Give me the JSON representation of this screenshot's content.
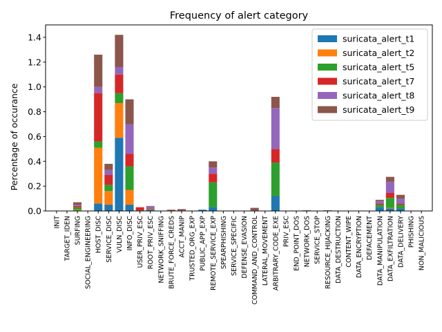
{
  "chart_data": {
    "type": "bar",
    "stacked": true,
    "title": "Frequency of alert category",
    "xlabel": "",
    "ylabel": "Percentage of occurance",
    "ylim": [
      0,
      1.5
    ],
    "yticks": [
      0.0,
      0.2,
      0.4,
      0.6,
      0.8,
      1.0,
      1.2,
      1.4
    ],
    "grid": false,
    "legend_position": "top-right",
    "categories": [
      "INIT",
      "TARGET_IDEN",
      "SURFING",
      "SOCIAL_ENGINEERING",
      "HOST_DISC",
      "SERVICE_DISC",
      "VULN_DISC",
      "INFO_DISC",
      "USER_PRIV_ESC",
      "ROOT_PRIV_ESC",
      "NETWORK_SNIFFING",
      "BRUTE_FORCE_CREDS",
      "ACCT_MANIP",
      "TRUSTED_ORG_EXP",
      "PUBLIC_APP_EXP",
      "REMOTE_SERVICE_EXP",
      "SPEARPHISHING",
      "SERVICE_SPECIFIC",
      "DEFENSE_EVASION",
      "COMMAND_AND_CONTROL",
      "LATERAL_MOVEMENT",
      "ARBITRARY_CODE_EXE",
      "PRIV_ESC",
      "END_POINT_DOS",
      "NETWORK_DOS",
      "SERVICE_STOP",
      "RESOURCE_HIJACKING",
      "DATA_DESTRUCTION",
      "CONTENT_WIPE",
      "DATA_ENCRYPTION",
      "DEFACEMENT",
      "DATA_MANIPULATION",
      "DATA_EXFILTRATION",
      "DATA_DELIVERY",
      "PHISHING",
      "NON_MALICIOUS"
    ],
    "series": [
      {
        "name": "suricata_alert_t1",
        "color": "#1f77b4",
        "values": [
          0,
          0,
          0.005,
          0,
          0.06,
          0.05,
          0.59,
          0.05,
          0,
          0,
          0,
          0,
          0,
          0,
          0.01,
          0.03,
          0,
          0,
          0,
          0,
          0,
          0.12,
          0,
          0,
          0,
          0,
          0,
          0,
          0,
          0,
          0,
          0.03,
          0.02,
          0.02,
          0,
          0
        ]
      },
      {
        "name": "suricata_alert_t2",
        "color": "#ff7f0e",
        "values": [
          0,
          0,
          0.005,
          0,
          0.45,
          0.11,
          0.28,
          0.12,
          0,
          0,
          0,
          0,
          0,
          0,
          0,
          0,
          0,
          0,
          0,
          0,
          0,
          0,
          0,
          0,
          0,
          0,
          0,
          0,
          0,
          0,
          0,
          0,
          0.005,
          0,
          0,
          0
        ]
      },
      {
        "name": "suricata_alert_t5",
        "color": "#2ca02c",
        "values": [
          0,
          0,
          0.02,
          0,
          0.05,
          0.05,
          0.08,
          0.19,
          0.005,
          0.01,
          0,
          0,
          0,
          0,
          0,
          0.2,
          0,
          0,
          0,
          0,
          0,
          0.27,
          0,
          0,
          0,
          0,
          0,
          0,
          0,
          0,
          0,
          0.02,
          0.08,
          0.03,
          0,
          0
        ]
      },
      {
        "name": "suricata_alert_t7",
        "color": "#d62728",
        "values": [
          0,
          0,
          0.01,
          0,
          0.39,
          0.08,
          0.15,
          0.1,
          0.025,
          0.005,
          0,
          0.005,
          0,
          0,
          0,
          0.07,
          0,
          0,
          0,
          0,
          0,
          0.11,
          0,
          0,
          0,
          0,
          0,
          0,
          0,
          0,
          0,
          0.01,
          0.04,
          0.01,
          0,
          0
        ]
      },
      {
        "name": "suricata_alert_t8",
        "color": "#9467bd",
        "values": [
          0,
          0,
          0.01,
          0,
          0.05,
          0.04,
          0.06,
          0.24,
          0,
          0.02,
          0,
          0,
          0.005,
          0,
          0,
          0.05,
          0,
          0,
          0,
          0.005,
          0,
          0.33,
          0,
          0,
          0,
          0,
          0,
          0,
          0,
          0,
          0,
          0.02,
          0.09,
          0.04,
          0,
          0
        ]
      },
      {
        "name": "suricata_alert_t9",
        "color": "#8c564b",
        "values": [
          0,
          0,
          0.02,
          0,
          0.26,
          0.05,
          0.26,
          0.2,
          0,
          0.005,
          0,
          0.005,
          0.01,
          0,
          0,
          0.05,
          0,
          0,
          0,
          0.02,
          0,
          0.09,
          0,
          0,
          0.005,
          0,
          0.005,
          0,
          0,
          0,
          0,
          0.01,
          0.04,
          0.03,
          0,
          0
        ]
      }
    ]
  }
}
